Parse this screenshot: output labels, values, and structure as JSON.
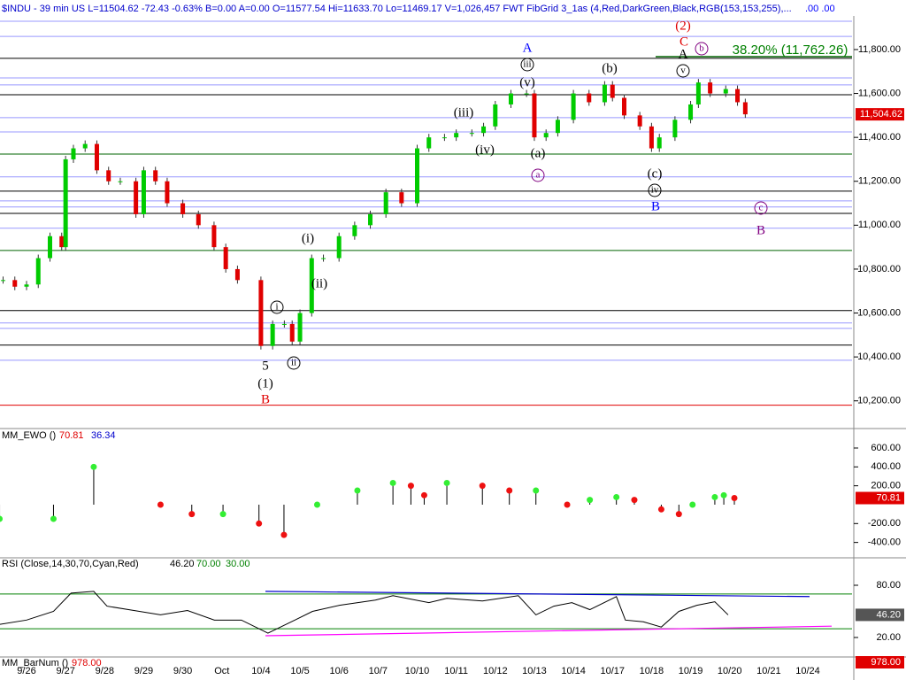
{
  "header": "$INDU - 39 min  US   L=11504.62  -72.43  -0.63%  B=0.00  A=0.00  O=11577.54  Hi=11633.70  Lo=11469.17  V=1,026,457   FWT FibGrid 3_1as (4,Red,DarkGreen,Black,RGB(153,153,255),...",
  "header_tail": ".00   .00",
  "chart_data": [
    {
      "type": "candles",
      "categories": [
        "9/26",
        "9/27",
        "9/28",
        "9/29",
        "9/30",
        "Oct",
        "10/4",
        "10/5",
        "10/6",
        "10/7",
        "10/10",
        "10/11",
        "10/12",
        "10/13",
        "10/14",
        "10/17",
        "10/18",
        "10/19",
        "10/20",
        "10/21",
        "10/24"
      ],
      "x": [
        -0.6,
        -0.3,
        0,
        0.3,
        0.6,
        0.9,
        1.0,
        1.2,
        1.5,
        1.8,
        2.1,
        2.4,
        2.8,
        3.0,
        3.3,
        3.6,
        4.0,
        4.4,
        4.8,
        5.1,
        5.4,
        6.0,
        6.3,
        6.6,
        6.8,
        7.0,
        7.3,
        7.6,
        8.0,
        8.4,
        8.8,
        9.2,
        9.6,
        10.0,
        10.3,
        10.7,
        11.0,
        11.4,
        11.7,
        12.0,
        12.4,
        12.8,
        13.0,
        13.3,
        13.6,
        14.0,
        14.4,
        14.8,
        15.0,
        15.3,
        15.7,
        16.0,
        16.2,
        16.6,
        17.0,
        17.2,
        17.5,
        17.9,
        18.2,
        18.4
      ],
      "values": [
        10750,
        10720,
        10730,
        10850,
        10950,
        10900,
        11300,
        11350,
        11370,
        11250,
        11200,
        11200,
        11050,
        11250,
        11200,
        11100,
        11050,
        11000,
        10900,
        10800,
        10750,
        10450,
        10550,
        10550,
        10470,
        10600,
        10850,
        10850,
        10950,
        11000,
        11050,
        11150,
        11100,
        11350,
        11400,
        11400,
        11420,
        11420,
        11450,
        11550,
        11600,
        11600,
        11400,
        11420,
        11480,
        11600,
        11560,
        11640,
        11580,
        11500,
        11450,
        11350,
        11400,
        11480,
        11550,
        11650,
        11600,
        11620,
        11560,
        11505
      ],
      "up_color": "#00cc00",
      "down_color": "#e00000",
      "ylim": [
        10090,
        11945
      ],
      "yticks": [
        {
          "value": 10200,
          "label": "10,200.00"
        },
        {
          "value": 10400,
          "label": "10,400.00"
        },
        {
          "value": 10600,
          "label": "10,600.00"
        },
        {
          "value": 10800,
          "label": "10,800.00"
        },
        {
          "value": 11000,
          "label": "11,000.00"
        },
        {
          "value": 11200,
          "label": "11,200.00"
        },
        {
          "value": 11400,
          "label": "11,400.00"
        },
        {
          "value": 11600,
          "label": "11,600.00"
        },
        {
          "value": 11800,
          "label": "11,800.00"
        }
      ],
      "levels": [
        {
          "value": 11929,
          "color": "#9999ff"
        },
        {
          "value": 11860,
          "color": "#9999ff"
        },
        {
          "value": 11760,
          "color": "#000000"
        },
        {
          "value": 11671,
          "color": "#9999ff"
        },
        {
          "value": 11639,
          "color": "#9999ff"
        },
        {
          "value": 11594,
          "color": "#000000"
        },
        {
          "value": 11490,
          "color": "#9999ff"
        },
        {
          "value": 11425,
          "color": "#9999ff"
        },
        {
          "value": 11324,
          "color": "#006400"
        },
        {
          "value": 11220,
          "color": "#9999ff"
        },
        {
          "value": 11155,
          "color": "#000000"
        },
        {
          "value": 11111,
          "color": "#9999ff"
        },
        {
          "value": 11083,
          "color": "#9999ff"
        },
        {
          "value": 11054,
          "color": "#000000"
        },
        {
          "value": 10986,
          "color": "#9999ff"
        },
        {
          "value": 10885,
          "color": "#006400"
        },
        {
          "value": 10611,
          "color": "#000000"
        },
        {
          "value": 10555,
          "color": "#9999ff"
        },
        {
          "value": 10530,
          "color": "#9999ff"
        },
        {
          "value": 10454,
          "color": "#000000"
        },
        {
          "value": 10385,
          "color": "#9999ff"
        },
        {
          "value": 10180,
          "color": "#e00000"
        }
      ],
      "last_label": "11,504.62",
      "fib_label": "38.20% (11,762.26)",
      "annotations": [
        {
          "text": "(2)",
          "color": "#e00000"
        },
        {
          "text": "C",
          "color": "#e00000"
        },
        {
          "text": "A",
          "color": "#000000"
        },
        {
          "text": "b",
          "color": "#800080",
          "circled": true
        },
        {
          "text": "v",
          "color": "#000000",
          "circled": true
        },
        {
          "text": "(b)",
          "color": "#000000"
        },
        {
          "text": "A",
          "color": "#0000ff"
        },
        {
          "text": "iii",
          "color": "#000000",
          "circled": true
        },
        {
          "text": "(v)",
          "color": "#000000"
        },
        {
          "text": "(iii)",
          "color": "#000000"
        },
        {
          "text": "(iv)",
          "color": "#000000"
        },
        {
          "text": "(a)",
          "color": "#000000"
        },
        {
          "text": "a",
          "color": "#800080",
          "circled": true
        },
        {
          "text": "(c)",
          "color": "#000000"
        },
        {
          "text": "iv",
          "color": "#000000",
          "circled": true
        },
        {
          "text": "B",
          "color": "#0000ff"
        },
        {
          "text": "c",
          "color": "#800080",
          "circled": true
        },
        {
          "text": "B",
          "color": "#800080"
        },
        {
          "text": "(i)",
          "color": "#000000"
        },
        {
          "text": "(ii)",
          "color": "#000000"
        },
        {
          "text": "i",
          "color": "#000000",
          "circled": true
        },
        {
          "text": "ii",
          "color": "#000000",
          "circled": true
        },
        {
          "text": "5",
          "color": "#000000"
        },
        {
          "text": "(1)",
          "color": "#000000"
        },
        {
          "text": "B",
          "color": "#e00000"
        }
      ]
    },
    {
      "type": "ewo",
      "title": "MM_EWO ()",
      "readings": [
        "70.81",
        "36.34"
      ],
      "x": [
        -0.69,
        0.69,
        1.72,
        3.43,
        4.23,
        5.03,
        5.95,
        6.59,
        7.44,
        8.47,
        9.38,
        9.84,
        10.18,
        10.76,
        11.67,
        12.36,
        13.04,
        13.84,
        14.42,
        15.1,
        15.56,
        16.25,
        16.7,
        17.05,
        17.62,
        17.85,
        18.12
      ],
      "values": [
        -150,
        -150,
        400,
        0,
        -100,
        -100,
        -200,
        -320,
        0,
        150,
        230,
        200,
        100,
        230,
        200,
        150,
        150,
        0,
        50,
        80,
        50,
        -50,
        -100,
        0,
        80,
        100,
        70
      ],
      "up_color": "#33ee33",
      "down_color": "#ee1111",
      "ylim": [
        -544,
        778
      ],
      "yticks": [
        {
          "value": 600,
          "label": "600.00"
        },
        {
          "value": 400,
          "label": "400.00"
        },
        {
          "value": 200,
          "label": "200.00"
        },
        {
          "value": -200,
          "label": "-200.00"
        },
        {
          "value": -400,
          "label": "-400.00"
        }
      ]
    },
    {
      "type": "rsi",
      "title": "RSI (Close,14,30,70,Cyan,Red)",
      "readings": [
        "46.20",
        "70.00",
        "30.00"
      ],
      "x": [
        -0.69,
        0,
        0.69,
        1.14,
        1.72,
        2.06,
        2.75,
        3.43,
        4.12,
        4.81,
        5.5,
        6.18,
        6.87,
        7.32,
        8.01,
        8.93,
        9.38,
        10.3,
        10.76,
        11.67,
        12.59,
        13.04,
        13.5,
        13.96,
        14.42,
        15.1,
        15.33,
        15.79,
        16.25,
        16.7,
        17.16,
        17.62,
        17.96
      ],
      "values": [
        35,
        40,
        50,
        71,
        73,
        56,
        51,
        46,
        51,
        40,
        40,
        25,
        40,
        50,
        57,
        63,
        68,
        60,
        65,
        62,
        68,
        46,
        56,
        60,
        52,
        67,
        40,
        38,
        32,
        50,
        57,
        61,
        46
      ],
      "color": "#000000",
      "levels": [
        {
          "value": 70,
          "color": "#008000"
        },
        {
          "value": 30,
          "color": "#008000"
        }
      ],
      "trendlines": [
        {
          "values": [
            73,
            67
          ],
          "color": "#0000cc"
        },
        {
          "values": [
            22,
            33
          ],
          "color": "#ff00ff"
        }
      ],
      "ylim": [
        -2.4,
        109.5
      ],
      "yticks": [
        {
          "value": 80,
          "label": "80.00"
        },
        {
          "value": 20,
          "label": "20.00"
        }
      ]
    },
    {
      "type": "barnum",
      "title": "MM_BarNum ()",
      "reading": "978.00"
    }
  ]
}
